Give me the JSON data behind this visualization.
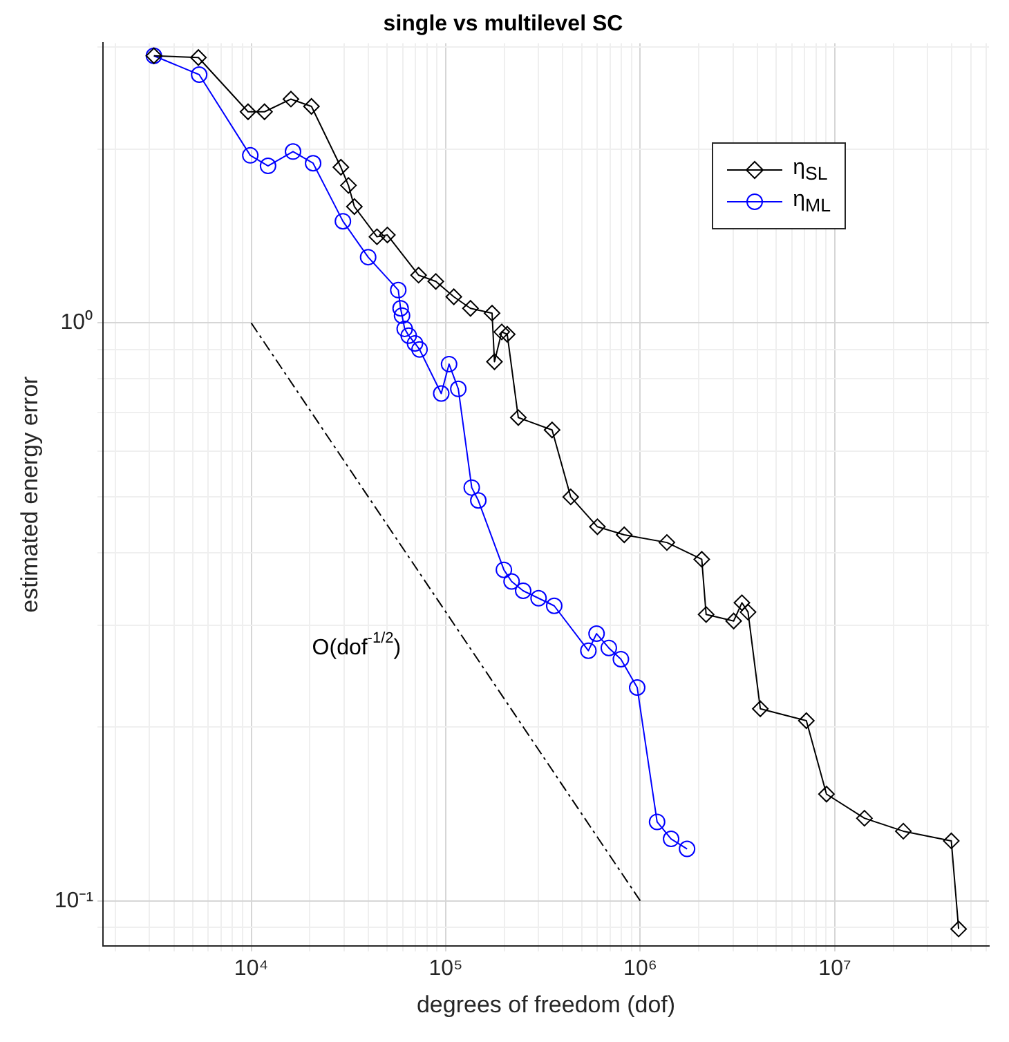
{
  "chart_data": {
    "type": "line",
    "title": "single vs multilevel SC",
    "xlabel": "degrees of freedom (dof)",
    "ylabel": "estimated energy error",
    "log": "xy",
    "grid": true,
    "legend": "top right",
    "xlim": [
      1730,
      62000000
    ],
    "ylim": [
      0.0836,
      3.05
    ],
    "xticks": [
      {
        "value": 2000,
        "label": null
      },
      {
        "value": 3000,
        "label": null
      },
      {
        "value": 4000,
        "label": null
      },
      {
        "value": 5000,
        "label": null
      },
      {
        "value": 6000,
        "label": null
      },
      {
        "value": 7000,
        "label": null
      },
      {
        "value": 8000,
        "label": null
      },
      {
        "value": 9000,
        "label": null
      },
      {
        "value": 10000,
        "label": "10⁴"
      },
      {
        "value": 20000,
        "label": null
      },
      {
        "value": 30000,
        "label": null
      },
      {
        "value": 40000,
        "label": null
      },
      {
        "value": 50000,
        "label": null
      },
      {
        "value": 60000,
        "label": null
      },
      {
        "value": 70000,
        "label": null
      },
      {
        "value": 80000,
        "label": null
      },
      {
        "value": 90000,
        "label": null
      },
      {
        "value": 100000,
        "label": "10⁵"
      },
      {
        "value": 200000,
        "label": null
      },
      {
        "value": 300000,
        "label": null
      },
      {
        "value": 400000,
        "label": null
      },
      {
        "value": 500000,
        "label": null
      },
      {
        "value": 600000,
        "label": null
      },
      {
        "value": 700000,
        "label": null
      },
      {
        "value": 800000,
        "label": null
      },
      {
        "value": 900000,
        "label": null
      },
      {
        "value": 1000000,
        "label": "10⁶"
      },
      {
        "value": 2000000,
        "label": null
      },
      {
        "value": 3000000,
        "label": null
      },
      {
        "value": 4000000,
        "label": null
      },
      {
        "value": 5000000,
        "label": null
      },
      {
        "value": 6000000,
        "label": null
      },
      {
        "value": 7000000,
        "label": null
      },
      {
        "value": 8000000,
        "label": null
      },
      {
        "value": 9000000,
        "label": null
      },
      {
        "value": 10000000,
        "label": "10⁷"
      },
      {
        "value": 20000000,
        "label": null
      },
      {
        "value": 30000000,
        "label": null
      },
      {
        "value": 40000000,
        "label": null
      },
      {
        "value": 50000000,
        "label": null
      },
      {
        "value": 60000000,
        "label": null
      }
    ],
    "yticks": [
      {
        "value": 0.09,
        "label": null
      },
      {
        "value": 0.1,
        "label": "10⁻¹"
      },
      {
        "value": 0.2,
        "label": null
      },
      {
        "value": 0.3,
        "label": null
      },
      {
        "value": 0.4,
        "label": null
      },
      {
        "value": 0.5,
        "label": null
      },
      {
        "value": 0.6,
        "label": null
      },
      {
        "value": 0.7,
        "label": null
      },
      {
        "value": 0.8,
        "label": null
      },
      {
        "value": 0.9,
        "label": null
      },
      {
        "value": 1,
        "label": "10⁰"
      },
      {
        "value": 2,
        "label": null
      },
      {
        "value": 3,
        "label": null
      }
    ],
    "series": [
      {
        "name": "η$_{SL}$",
        "color": "#000000",
        "marker": "diamond",
        "line_style": "solid",
        "x": [
          3160,
          5350,
          9630,
          11700,
          16000,
          20400,
          28900,
          31600,
          33900,
          44300,
          50100,
          72500,
          88900,
          110000,
          134000,
          173000,
          178000,
          194000,
          207000,
          236000,
          352000,
          439000,
          602000,
          827000,
          1370000,
          2070000,
          2180000,
          3020000,
          3330000,
          3580000,
          4140000,
          7140000,
          9060000,
          14200000,
          22500000,
          39700000,
          43300000
        ],
        "values": [
          2.9,
          2.88,
          2.32,
          2.32,
          2.44,
          2.37,
          1.86,
          1.73,
          1.59,
          1.41,
          1.42,
          1.21,
          1.18,
          1.11,
          1.06,
          1.04,
          0.857,
          0.965,
          0.956,
          0.686,
          0.653,
          0.5,
          0.444,
          0.43,
          0.417,
          0.39,
          0.313,
          0.305,
          0.328,
          0.316,
          0.215,
          0.205,
          0.153,
          0.139,
          0.132,
          0.127,
          0.0894
        ]
      },
      {
        "name": "η$_{ML}$",
        "color": "#0000ff",
        "marker": "circle",
        "line_style": "solid",
        "x": [
          3160,
          5400,
          9890,
          12200,
          16400,
          20800,
          29600,
          39900,
          57000,
          58600,
          59600,
          61500,
          64500,
          69500,
          73300,
          94800,
          104000,
          116000,
          136000,
          147000,
          199000,
          218000,
          250000,
          300000,
          361000,
          541000,
          596000,
          689000,
          795000,
          964000,
          1220000,
          1440000,
          1740000
        ],
        "values": [
          2.9,
          2.69,
          1.95,
          1.87,
          1.98,
          1.89,
          1.5,
          1.3,
          1.14,
          1.06,
          1.03,
          0.977,
          0.951,
          0.922,
          0.9,
          0.755,
          0.849,
          0.769,
          0.519,
          0.493,
          0.374,
          0.357,
          0.344,
          0.334,
          0.324,
          0.271,
          0.29,
          0.274,
          0.262,
          0.234,
          0.137,
          0.128,
          0.123
        ]
      },
      {
        "type": "line",
        "color": "#000000",
        "marker": "none",
        "line_style": "dashed",
        "x": [
          10000,
          1000000
        ],
        "values": [
          1,
          0.1
        ]
      }
    ],
    "annotations": [
      "O(dof$^{-1/2}$)"
    ]
  }
}
